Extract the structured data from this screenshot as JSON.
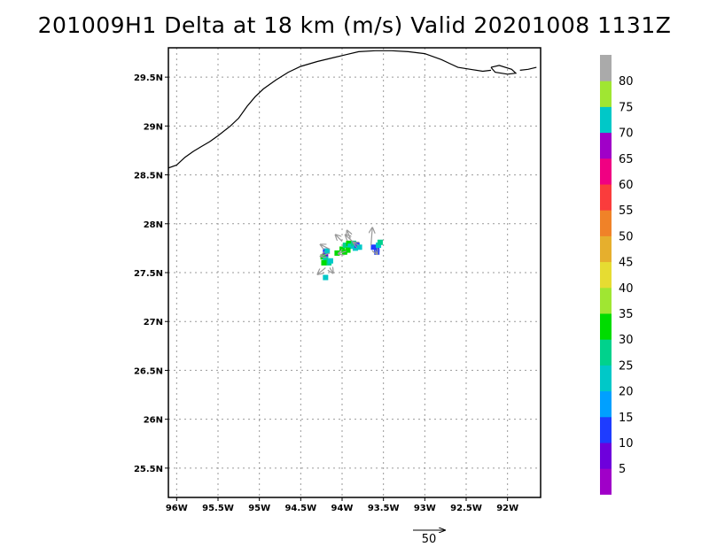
{
  "title": "201009H1 Delta at 18 km (m/s) Valid 20201008 1131Z",
  "map": {
    "lon_range": [
      -96.1,
      -91.6
    ],
    "lat_range": [
      25.2,
      29.8
    ],
    "lon_ticks": [
      {
        "value": -96.0,
        "label": "96W"
      },
      {
        "value": -95.5,
        "label": "95.5W"
      },
      {
        "value": -95.0,
        "label": "95W"
      },
      {
        "value": -94.5,
        "label": "94.5W"
      },
      {
        "value": -94.0,
        "label": "94W"
      },
      {
        "value": -93.5,
        "label": "93.5W"
      },
      {
        "value": -93.0,
        "label": "93W"
      },
      {
        "value": -92.5,
        "label": "92.5W"
      },
      {
        "value": -92.0,
        "label": "92W"
      }
    ],
    "lat_ticks": [
      {
        "value": 29.5,
        "label": "29.5N"
      },
      {
        "value": 29.0,
        "label": "29N"
      },
      {
        "value": 28.5,
        "label": "28.5N"
      },
      {
        "value": 28.0,
        "label": "28N"
      },
      {
        "value": 27.5,
        "label": "27.5N"
      },
      {
        "value": 27.0,
        "label": "27N"
      },
      {
        "value": 26.5,
        "label": "26.5N"
      },
      {
        "value": 26.0,
        "label": "26N"
      },
      {
        "value": 25.5,
        "label": "25.5N"
      }
    ],
    "grid": true,
    "coastline_main": [
      [
        -96.1,
        28.57
      ],
      [
        -96.0,
        28.6
      ],
      [
        -95.9,
        28.68
      ],
      [
        -95.8,
        28.74
      ],
      [
        -95.7,
        28.79
      ],
      [
        -95.6,
        28.84
      ],
      [
        -95.5,
        28.9
      ],
      [
        -95.35,
        29.0
      ],
      [
        -95.25,
        29.08
      ],
      [
        -95.15,
        29.2
      ],
      [
        -95.05,
        29.3
      ],
      [
        -94.95,
        29.38
      ],
      [
        -94.8,
        29.47
      ],
      [
        -94.65,
        29.55
      ],
      [
        -94.5,
        29.61
      ],
      [
        -94.3,
        29.66
      ],
      [
        -94.1,
        29.7
      ],
      [
        -93.95,
        29.73
      ],
      [
        -93.8,
        29.76
      ],
      [
        -93.6,
        29.77
      ],
      [
        -93.4,
        29.77
      ],
      [
        -93.2,
        29.76
      ],
      [
        -93.0,
        29.74
      ],
      [
        -92.8,
        29.68
      ],
      [
        -92.6,
        29.6
      ],
      [
        -92.45,
        29.58
      ],
      [
        -92.3,
        29.56
      ],
      [
        -92.2,
        29.57
      ]
    ],
    "coastline_islands": [
      [
        [
          -92.2,
          29.6
        ],
        [
          -92.1,
          29.62
        ],
        [
          -91.95,
          29.58
        ],
        [
          -91.9,
          29.54
        ],
        [
          -92.0,
          29.53
        ],
        [
          -92.15,
          29.55
        ],
        [
          -92.2,
          29.6
        ]
      ],
      [
        [
          -91.85,
          29.57
        ],
        [
          -91.75,
          29.58
        ],
        [
          -91.65,
          29.6
        ]
      ]
    ],
    "colormap": {
      "levels": [
        "5",
        "10",
        "15",
        "20",
        "25",
        "30",
        "35",
        "40",
        "45",
        "50",
        "55",
        "60",
        "65",
        "70",
        "75",
        "80"
      ],
      "colors": [
        "#a000c8",
        "#6e00dc",
        "#1e3cff",
        "#00a0ff",
        "#00c8c8",
        "#00d28c",
        "#00dc00",
        "#a0e632",
        "#e6dc32",
        "#e6af2d",
        "#f08228",
        "#fa3c3c",
        "#f00082",
        "#a000c8",
        "#00c8c8",
        "#a0e632",
        "#aaaaaa"
      ]
    },
    "wind_cells": [
      {
        "lon": -94.2,
        "lat": 27.72,
        "v": 12
      },
      {
        "lon": -94.2,
        "lat": 27.68,
        "v": 8
      },
      {
        "lon": -94.23,
        "lat": 27.66,
        "v": 33
      },
      {
        "lon": -94.2,
        "lat": 27.64,
        "v": 22
      },
      {
        "lon": -94.18,
        "lat": 27.62,
        "v": 28
      },
      {
        "lon": -94.16,
        "lat": 27.6,
        "v": 26
      },
      {
        "lon": -94.14,
        "lat": 27.62,
        "v": 20
      },
      {
        "lon": -94.22,
        "lat": 27.6,
        "v": 34
      },
      {
        "lon": -94.18,
        "lat": 27.72,
        "v": 70
      },
      {
        "lon": -94.2,
        "lat": 27.45,
        "v": 22
      },
      {
        "lon": -94.06,
        "lat": 27.7,
        "v": 32
      },
      {
        "lon": -94.0,
        "lat": 27.74,
        "v": 30
      },
      {
        "lon": -93.96,
        "lat": 27.78,
        "v": 26
      },
      {
        "lon": -93.92,
        "lat": 27.8,
        "v": 34
      },
      {
        "lon": -93.9,
        "lat": 27.77,
        "v": 24
      },
      {
        "lon": -93.86,
        "lat": 27.8,
        "v": 28
      },
      {
        "lon": -93.84,
        "lat": 27.75,
        "v": 22
      },
      {
        "lon": -93.82,
        "lat": 27.78,
        "v": 12
      },
      {
        "lon": -93.79,
        "lat": 27.76,
        "v": 70
      },
      {
        "lon": -93.93,
        "lat": 27.73,
        "v": 30
      },
      {
        "lon": -93.97,
        "lat": 27.71,
        "v": 32
      },
      {
        "lon": -93.62,
        "lat": 27.76,
        "v": 10
      },
      {
        "lon": -93.58,
        "lat": 27.74,
        "v": 12
      },
      {
        "lon": -93.56,
        "lat": 27.78,
        "v": 20
      },
      {
        "lon": -93.54,
        "lat": 27.81,
        "v": 26
      },
      {
        "lon": -93.58,
        "lat": 27.71,
        "v": 10
      }
    ],
    "wind_vectors": [
      {
        "lon": -94.15,
        "lat": 27.74,
        "u": -14,
        "v": 7
      },
      {
        "lon": -94.15,
        "lat": 27.7,
        "u": -14,
        "v": -5
      },
      {
        "lon": -94.2,
        "lat": 27.55,
        "u": -12,
        "v": -10
      },
      {
        "lon": -94.15,
        "lat": 27.55,
        "u": 5,
        "v": -8
      },
      {
        "lon": -94.0,
        "lat": 27.82,
        "u": -10,
        "v": 10
      },
      {
        "lon": -93.9,
        "lat": 27.85,
        "u": -5,
        "v": 12
      },
      {
        "lon": -93.85,
        "lat": 27.8,
        "u": -14,
        "v": 13
      },
      {
        "lon": -93.8,
        "lat": 27.78,
        "u": -8,
        "v": 4
      },
      {
        "lon": -93.65,
        "lat": 27.78,
        "u": 2,
        "v": 27
      },
      {
        "lon": -93.6,
        "lat": 27.73,
        "u": 3,
        "v": -6
      },
      {
        "lon": -93.95,
        "lat": 27.72,
        "u": -12,
        "v": -4
      }
    ]
  },
  "reference_vector": {
    "value": 50,
    "label": "50"
  }
}
